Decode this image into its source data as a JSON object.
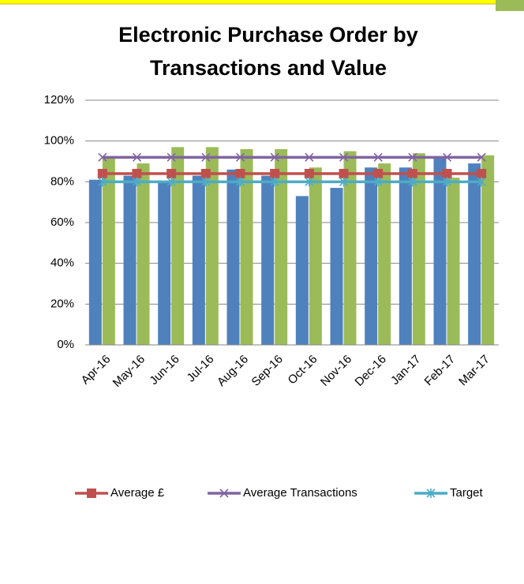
{
  "chart_data": {
    "type": "bar",
    "title": [
      "Electronic Purchase Order by",
      "Transactions and Value"
    ],
    "categories": [
      "Apr-16",
      "May-16",
      "Jun-16",
      "Jul-16",
      "Aug-16",
      "Sep-16",
      "Oct-16",
      "Nov-16",
      "Dec-16",
      "Jan-17",
      "Feb-17",
      "Mar-17"
    ],
    "series": [
      {
        "type": "bar",
        "color": "#4f81bd",
        "values": [
          81,
          83,
          80,
          83,
          86,
          83,
          73,
          77,
          87,
          87,
          92,
          89
        ]
      },
      {
        "type": "bar",
        "color": "#9bbb59",
        "values": [
          92,
          89,
          97,
          97,
          96,
          96,
          87,
          95,
          89,
          94,
          82,
          93
        ]
      },
      {
        "type": "line",
        "name": "Average £",
        "color": "#c0504d",
        "marker": "square",
        "values": [
          84,
          84,
          84,
          84,
          84,
          84,
          84,
          84,
          84,
          84,
          84,
          84
        ]
      },
      {
        "type": "line",
        "name": "Average Transactions",
        "color": "#8064a2",
        "marker": "x",
        "values": [
          92,
          92,
          92,
          92,
          92,
          92,
          92,
          92,
          92,
          92,
          92,
          92
        ]
      },
      {
        "type": "line",
        "name": "Target",
        "color": "#4bacc6",
        "marker": "star",
        "values": [
          80,
          80,
          80,
          80,
          80,
          80,
          80,
          80,
          80,
          80,
          80,
          80
        ]
      }
    ],
    "ylim": [
      0,
      120
    ],
    "yticks": [
      {
        "value": 0,
        "label": "0%"
      },
      {
        "value": 20,
        "label": "20%"
      },
      {
        "value": 40,
        "label": "40%"
      },
      {
        "value": 60,
        "label": "60%"
      },
      {
        "value": 80,
        "label": "80%"
      },
      {
        "value": 100,
        "label": "100%"
      },
      {
        "value": 120,
        "label": "120%"
      }
    ],
    "grid": true,
    "legend": "bottom"
  }
}
